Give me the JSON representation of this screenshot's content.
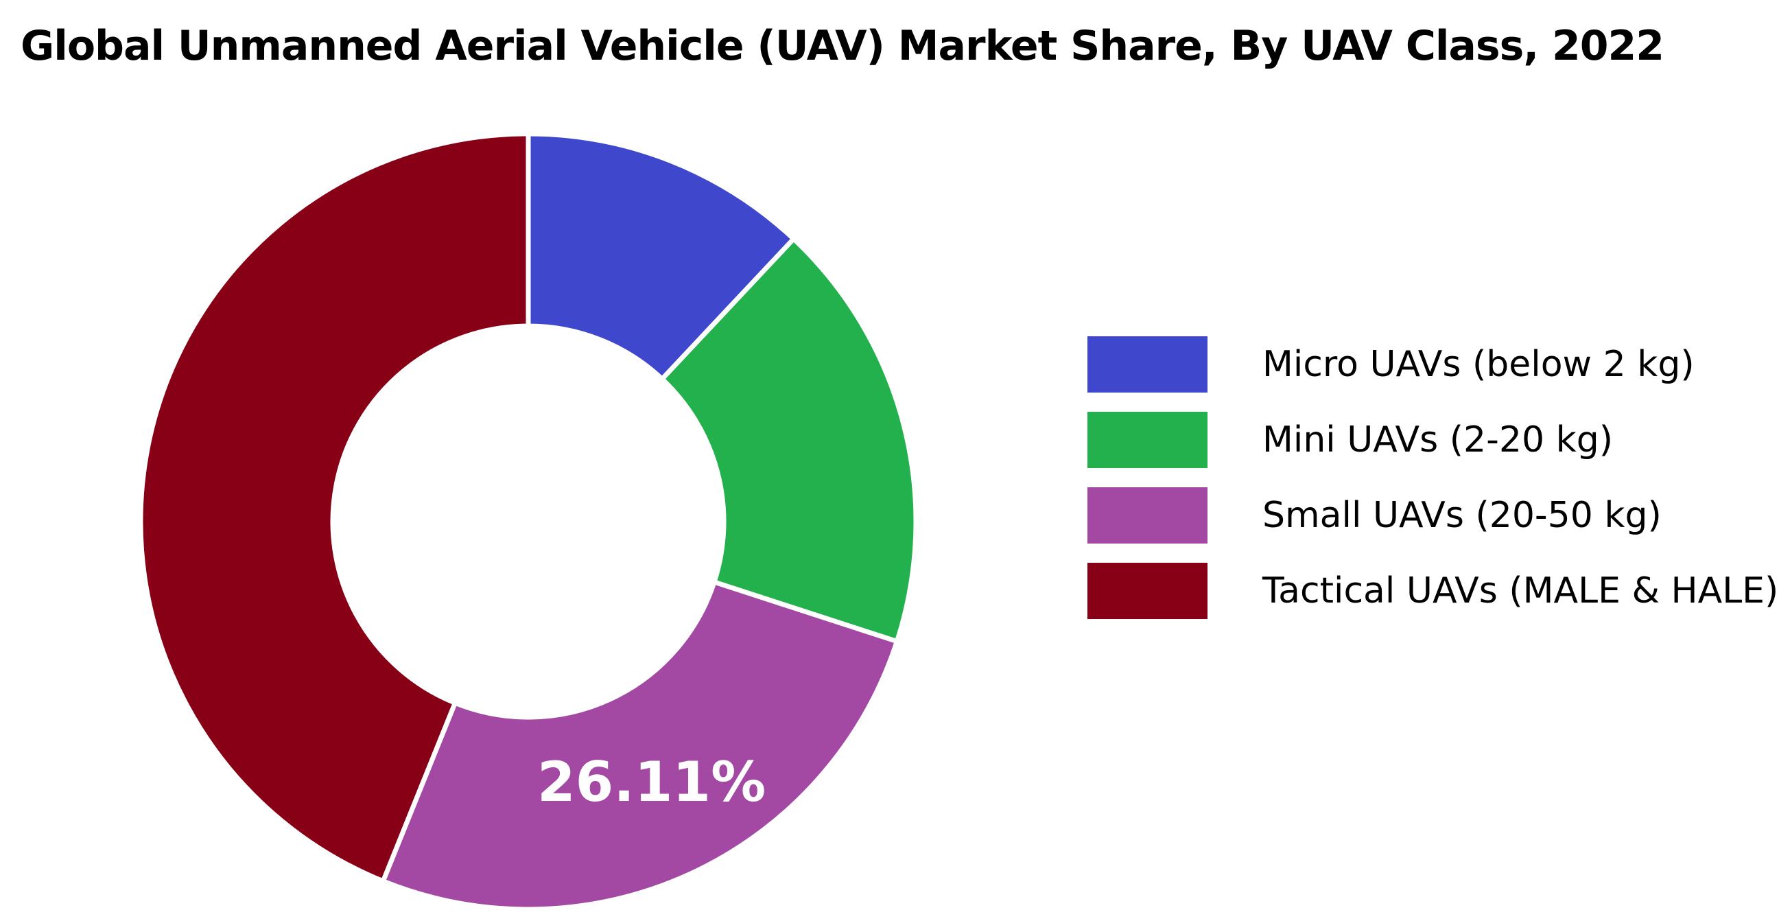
{
  "chart_data": {
    "type": "pie",
    "subtype": "donut",
    "title": "Global Unmanned Aerial Vehicle (UAV) Market Share, By UAV Class, 2022",
    "legend_position": "right",
    "slices": [
      {
        "label": "Micro UAVs (below 2 kg)",
        "value": 12.0,
        "color": "#3f48cc"
      },
      {
        "label": "Mini UAVs (2-20 kg)",
        "value": 18.0,
        "color": "#22b14c"
      },
      {
        "label": "Small UAVs (20-50 kg)",
        "value": 26.11,
        "color": "#a349a4"
      },
      {
        "label": "Tactical UAVs (MALE & HALE)",
        "value": 43.89,
        "color": "#880015"
      }
    ],
    "data_labels": [
      {
        "slice": 2,
        "text": "26.11%"
      }
    ]
  }
}
